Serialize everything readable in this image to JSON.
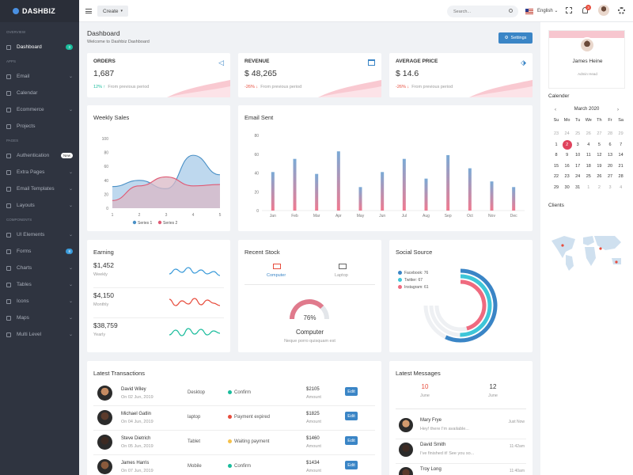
{
  "brand": "DASHBIZ",
  "sidebar": {
    "sections": [
      "Overview",
      "Apps",
      "Pages",
      "Components"
    ],
    "items": [
      {
        "label": "Dashboard",
        "badge": "3"
      },
      {
        "label": "Email"
      },
      {
        "label": "Calendar"
      },
      {
        "label": "Ecommerce"
      },
      {
        "label": "Projects"
      },
      {
        "label": "Authentication",
        "badge": "New"
      },
      {
        "label": "Extra Pages"
      },
      {
        "label": "Email Templates"
      },
      {
        "label": "Layouts"
      },
      {
        "label": "UI Elements"
      },
      {
        "label": "Forms",
        "badge": "8"
      },
      {
        "label": "Charts"
      },
      {
        "label": "Tables"
      },
      {
        "label": "Icons"
      },
      {
        "label": "Maps"
      },
      {
        "label": "Multi Level"
      }
    ]
  },
  "topbar": {
    "create": "Create",
    "search_placeholder": "Search...",
    "language": "English",
    "notif_count": "3"
  },
  "page": {
    "title": "Dashboard",
    "subtitle": "Welcome to Dashbiz Dashboard",
    "settings": "Settings"
  },
  "stats": [
    {
      "label": "ORDERS",
      "value": "1,687",
      "change": "12%",
      "arrow": "↑",
      "note": "From previous period"
    },
    {
      "label": "REVENUE",
      "value": "$ 48,265",
      "change": "-26%",
      "arrow": "↓",
      "note": "From previous period"
    },
    {
      "label": "AVERAGE PRICE",
      "value": "$ 14.6",
      "change": "-26%",
      "arrow": "↓",
      "note": "From previous period"
    }
  ],
  "weekly": {
    "title": "Weekly Sales"
  },
  "email_sent": {
    "title": "Email Sent"
  },
  "chart_data": [
    {
      "type": "area",
      "title": "Weekly Sales",
      "x": [
        1,
        2,
        3,
        4,
        5
      ],
      "ylim": [
        0,
        100
      ],
      "yticks": [
        0,
        20,
        40,
        60,
        80,
        100
      ],
      "series": [
        {
          "name": "Series 1",
          "values": [
            31,
            40,
            28,
            76,
            48
          ]
        },
        {
          "name": "Series 2",
          "values": [
            11,
            32,
            45,
            32,
            34
          ]
        }
      ]
    },
    {
      "type": "bar",
      "title": "Email Sent",
      "categories": [
        "Jan",
        "Feb",
        "Mar",
        "Apr",
        "May",
        "Jun",
        "Jul",
        "Aug",
        "Sep",
        "Oct",
        "Nov",
        "Dec"
      ],
      "ylim": [
        0,
        80
      ],
      "yticks": [
        0,
        20,
        40,
        60,
        80
      ],
      "values": [
        41,
        55,
        39,
        63,
        25,
        41,
        55,
        34,
        59,
        45,
        31,
        25
      ]
    }
  ],
  "earning": {
    "title": "Earning",
    "rows": [
      {
        "value": "$1,452",
        "label": "Weekly",
        "color": "#3a9ad9"
      },
      {
        "value": "$4,150",
        "label": "Monthly",
        "color": "#e74c3c"
      },
      {
        "value": "$38,759",
        "label": "Yearly",
        "color": "#1abc9c"
      }
    ]
  },
  "stock": {
    "title": "Recent Stock",
    "tabs": [
      "Computer",
      "Laptop"
    ],
    "percent": "76%",
    "percent_value": 76,
    "name": "Computer",
    "desc": "Neque porro quisquam est"
  },
  "social": {
    "title": "Social Source",
    "items": [
      {
        "label": "Facebook: 76",
        "value": 76,
        "color": "#3a85c6"
      },
      {
        "label": "Twitter: 67",
        "value": 67,
        "color": "#3ec6d8"
      },
      {
        "label": "Instagram: 61",
        "value": 61,
        "color": "#ef6a7f"
      }
    ]
  },
  "profile": {
    "name": "James Heine",
    "role": "Admin Head"
  },
  "calendar": {
    "title": "Calender",
    "month": "March 2020",
    "days": [
      "Su",
      "Mo",
      "Tu",
      "We",
      "Th",
      "Fr",
      "Sa"
    ],
    "weeks": [
      [
        "23",
        "24",
        "25",
        "26",
        "27",
        "28",
        "29"
      ],
      [
        "1",
        "2",
        "3",
        "4",
        "5",
        "6",
        "7"
      ],
      [
        "8",
        "9",
        "10",
        "11",
        "12",
        "13",
        "14"
      ],
      [
        "15",
        "16",
        "17",
        "18",
        "19",
        "20",
        "21"
      ],
      [
        "22",
        "23",
        "24",
        "25",
        "26",
        "27",
        "28"
      ],
      [
        "29",
        "30",
        "31",
        "1",
        "2",
        "3",
        "4"
      ]
    ],
    "selected": "2"
  },
  "clients": {
    "title": "Clients"
  },
  "transactions": {
    "title": "Latest Transactions",
    "rows": [
      {
        "name": "David Wiley",
        "date": "On 02 Jun, 2019",
        "device": "Desktop",
        "status": "Confirm",
        "status_color": "#1abc9c",
        "amount": "$2105",
        "amount_label": "Amount",
        "action": "Edit"
      },
      {
        "name": "Michael Gatlin",
        "date": "On 04 Jun, 2019",
        "device": "laptop",
        "status": "Payment expired",
        "status_color": "#e74c3c",
        "amount": "$1825",
        "amount_label": "Amount",
        "action": "Edit"
      },
      {
        "name": "Steve Dietrich",
        "date": "On 05 Jun, 2019",
        "device": "Tablet",
        "status": "Waiting payment",
        "status_color": "#f5c14a",
        "amount": "$1460",
        "amount_label": "Amount",
        "action": "Edit"
      },
      {
        "name": "James Harris",
        "date": "On 07 Jun, 2019",
        "device": "Mobile",
        "status": "Confirm",
        "status_color": "#1abc9c",
        "amount": "$1434",
        "amount_label": "Amount",
        "action": "Edit"
      }
    ]
  },
  "messages": {
    "title": "Latest Messages",
    "tabs": [
      {
        "day": "10",
        "month": "June"
      },
      {
        "day": "12",
        "month": "June"
      }
    ],
    "rows": [
      {
        "name": "Mary Frye",
        "text": "Hey! there I'm available...",
        "time": "Just Now"
      },
      {
        "name": "David Smith",
        "text": "I've finished it! See you so...",
        "time": "11:42am"
      },
      {
        "name": "Troy Long",
        "text": "",
        "time": "11:40am"
      }
    ]
  }
}
